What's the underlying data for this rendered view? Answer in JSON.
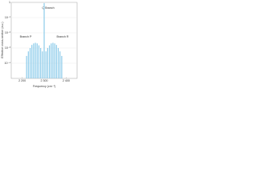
{
  "chart_data": {
    "type": "bar",
    "x_label": "Frequency (cm⁻¹)",
    "y_label": "Effective cross-section (a.u.)",
    "annotations": [
      "Q Branch",
      "Branch P",
      "Branch R"
    ],
    "x": [
      2220,
      2228,
      2236,
      2244,
      2252,
      2260,
      2268,
      2276,
      2284,
      2292,
      2300,
      2308,
      2316,
      2324,
      2332,
      2340,
      2348,
      2356,
      2364,
      2372,
      2380
    ],
    "values": [
      0.0003,
      0.0006,
      0.001,
      0.0016,
      0.002,
      0.0022,
      0.002,
      0.0015,
      0.001,
      0.0006,
      0.9,
      0.0006,
      0.001,
      0.0015,
      0.002,
      0.0022,
      0.002,
      0.0016,
      0.001,
      0.0006,
      0.0003
    ],
    "color": "#8ccbea",
    "xlim": [
      2150,
      2450
    ],
    "xticks": [
      {
        "value": 2200,
        "label": "2 200"
      },
      {
        "value": 2300,
        "label": "2 300"
      },
      {
        "value": 2400,
        "label": "2 400"
      }
    ],
    "ylim": [
      1e-05,
      1
    ],
    "yscale": "log",
    "yticks": [
      {
        "value": 0.0001,
        "label": "10⁻⁴"
      },
      {
        "value": 0.001,
        "label": "10⁻³"
      },
      {
        "value": 0.01,
        "label": "10⁻²"
      },
      {
        "value": 0.1,
        "label": "10⁻¹"
      },
      {
        "value": 1,
        "label": "1"
      }
    ],
    "grid": true
  }
}
